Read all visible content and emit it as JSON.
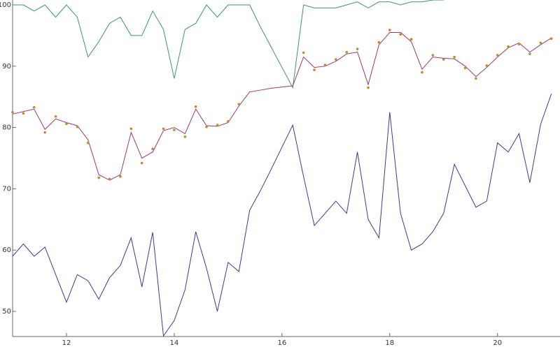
{
  "chart_data": {
    "type": "line",
    "x": [
      11.0,
      11.2,
      11.4,
      11.6,
      11.8,
      12.0,
      12.2,
      12.4,
      12.6,
      12.8,
      13.0,
      13.2,
      13.4,
      13.6,
      13.8,
      14.0,
      14.2,
      14.4,
      14.6,
      14.8,
      15.0,
      15.2,
      15.4,
      15.6,
      15.8,
      16.0,
      16.2,
      16.4,
      16.6,
      16.8,
      17.0,
      17.2,
      17.4,
      17.6,
      17.8,
      18.0,
      18.2,
      18.4,
      18.6,
      18.8,
      19.0,
      19.2,
      19.4,
      19.6,
      19.8,
      20.0,
      20.2,
      20.4,
      20.6,
      20.8,
      21.0
    ],
    "series": [
      {
        "color": "#3a9a5a",
        "mode": "line",
        "values": [
          100,
          100,
          99,
          100,
          98,
          100,
          98,
          91.5,
          94,
          97,
          98,
          95,
          95,
          99,
          96,
          88,
          96,
          97,
          100,
          98,
          100,
          100,
          100,
          96.4,
          93.1,
          89.8,
          86.5,
          100,
          99.5,
          99.5,
          99.5,
          100,
          100.5,
          99.5,
          100.5,
          100.5,
          100,
          100.5,
          100.5,
          100.8,
          100.8,
          null,
          null,
          null,
          null,
          null,
          null,
          null,
          null,
          null,
          null
        ]
      },
      {
        "color": "#9b3a6e",
        "mode": "line",
        "values": [
          82.2,
          82.6,
          83,
          79.7,
          81.4,
          80.8,
          80.3,
          78,
          72.3,
          71.4,
          72.3,
          79.2,
          75,
          76,
          79.5,
          80,
          79,
          83,
          80.3,
          80.2,
          80.8,
          83.5,
          85.8,
          86.1,
          86.4,
          86.6,
          86.8,
          91.5,
          89.8,
          90,
          90.8,
          92,
          92.3,
          87,
          93.5,
          95.5,
          95.5,
          94,
          89.5,
          91.5,
          91.3,
          91.2,
          90,
          88.3,
          89.8,
          91.5,
          93,
          93.8,
          92.3,
          93.5,
          94.6
        ]
      },
      {
        "color": "#c08a30",
        "mode": "markers",
        "values": [
          82.5,
          82.3,
          83.3,
          79.2,
          81.8,
          80.6,
          80.1,
          77.5,
          71.8,
          71.6,
          72,
          79.8,
          74.2,
          76.5,
          79.8,
          79.6,
          78.5,
          83.4,
          80.1,
          80.4,
          81,
          83.8,
          null,
          null,
          null,
          null,
          null,
          92.2,
          89.4,
          90.2,
          91.1,
          92.3,
          92.8,
          86.5,
          93.9,
          95.9,
          95.2,
          94.4,
          89,
          91.8,
          91.1,
          91.5,
          89.7,
          88,
          90.1,
          91.8,
          93.2,
          93.6,
          92,
          93.8,
          94.5
        ]
      },
      {
        "color": "#3b3b95",
        "mode": "line",
        "values": [
          59,
          61,
          59,
          60.5,
          56,
          51.5,
          56,
          55,
          52,
          55.5,
          57.5,
          62,
          54,
          62.9,
          46,
          48.5,
          53.5,
          63,
          57,
          50,
          58,
          56.5,
          66.5,
          69.7,
          73.2,
          76.8,
          80.4,
          72,
          64,
          66,
          68,
          66,
          76,
          65,
          62,
          82.5,
          66,
          60,
          61,
          63,
          66,
          74,
          70.5,
          67,
          68,
          77.5,
          76,
          79,
          71,
          80.5,
          85.5
        ]
      }
    ],
    "xlim": [
      11,
      21.16
    ],
    "ylim": [
      45.9,
      100.8
    ],
    "xticks": [
      12,
      14,
      16,
      18,
      20
    ],
    "yticks": [
      50,
      60,
      70,
      80,
      90,
      100
    ]
  }
}
